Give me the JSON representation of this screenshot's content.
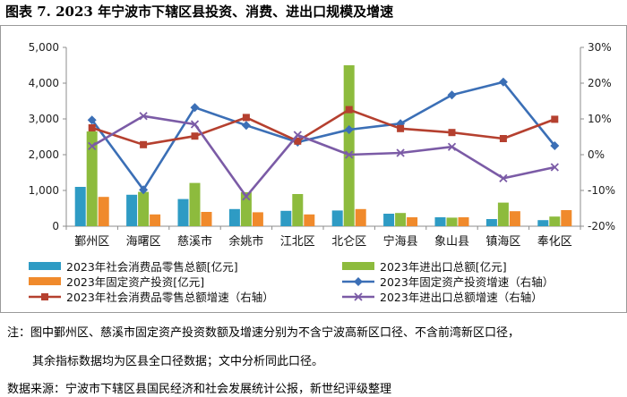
{
  "figure": {
    "title": "图表 7.   2023 年宁波市下辖区县投资、消费、进出口规模及增速"
  },
  "colors": {
    "retail_bar": "#2E9BC4",
    "trade_bar": "#8DBB3D",
    "fai_bar": "#F08A2C",
    "fai_line": "#3B6FB6",
    "retail_line": "#B5402F",
    "trade_line": "#7B5BA6"
  },
  "chart_data": {
    "type": "bar",
    "categories": [
      "鄞州区",
      "海曙区",
      "慈溪市",
      "余姚市",
      "江北区",
      "北仑区",
      "宁海县",
      "象山县",
      "镇海区",
      "奉化区"
    ],
    "y_left": {
      "range": [
        0,
        5000
      ],
      "ticks": [
        "0",
        "1,000",
        "2,000",
        "3,000",
        "4,000",
        "5,000"
      ]
    },
    "y_right": {
      "range": [
        -20,
        30
      ],
      "ticks": [
        "-20%",
        "-10%",
        "0%",
        "10%",
        "20%",
        "30%"
      ]
    },
    "grid": false,
    "legend_position": "bottom",
    "bars": [
      {
        "name": "2023年社会消费品零售总额[亿元]",
        "color": "#2E9BC4",
        "values": [
          1100,
          880,
          760,
          480,
          430,
          440,
          350,
          250,
          200,
          170
        ]
      },
      {
        "name": "2023年进出口总额[亿元]",
        "color": "#8DBB3D",
        "values": [
          2650,
          960,
          1210,
          950,
          900,
          4500,
          370,
          240,
          660,
          270
        ]
      },
      {
        "name": "2023年固定资产投资[亿元]",
        "color": "#F08A2C",
        "values": [
          820,
          330,
          400,
          390,
          330,
          480,
          250,
          250,
          420,
          450
        ]
      }
    ],
    "lines": [
      {
        "name": "2023年固定资产投资增速（右轴）",
        "color": "#3B6FB6",
        "marker": "diamond",
        "values": [
          9.7,
          -9.8,
          13.2,
          8.2,
          3.5,
          7.0,
          8.7,
          16.7,
          20.3,
          2.5
        ]
      },
      {
        "name": "2023年社会消费品零售总额增速（右轴）",
        "color": "#B5402F",
        "marker": "square",
        "values": [
          7.5,
          2.8,
          5.2,
          10.4,
          3.8,
          12.6,
          7.3,
          6.2,
          4.5,
          9.9
        ]
      },
      {
        "name": "2023年进出口总额增速（右轴）",
        "color": "#7B5BA6",
        "marker": "x",
        "values": [
          2.4,
          10.8,
          8.5,
          -11.7,
          5.5,
          0.0,
          0.5,
          2.2,
          -6.6,
          -3.5
        ]
      }
    ]
  },
  "notes": {
    "line1": "注：图中鄞州区、慈溪市固定资产投资数额及增速分别为不含宁波高新区口径、不含前湾新区口径，",
    "line2": "其余指标数据均为区县全口径数据；文中分析同此口径。",
    "source": "数据来源：宁波市下辖区县国民经济和社会发展统计公报，新世纪评级整理"
  }
}
